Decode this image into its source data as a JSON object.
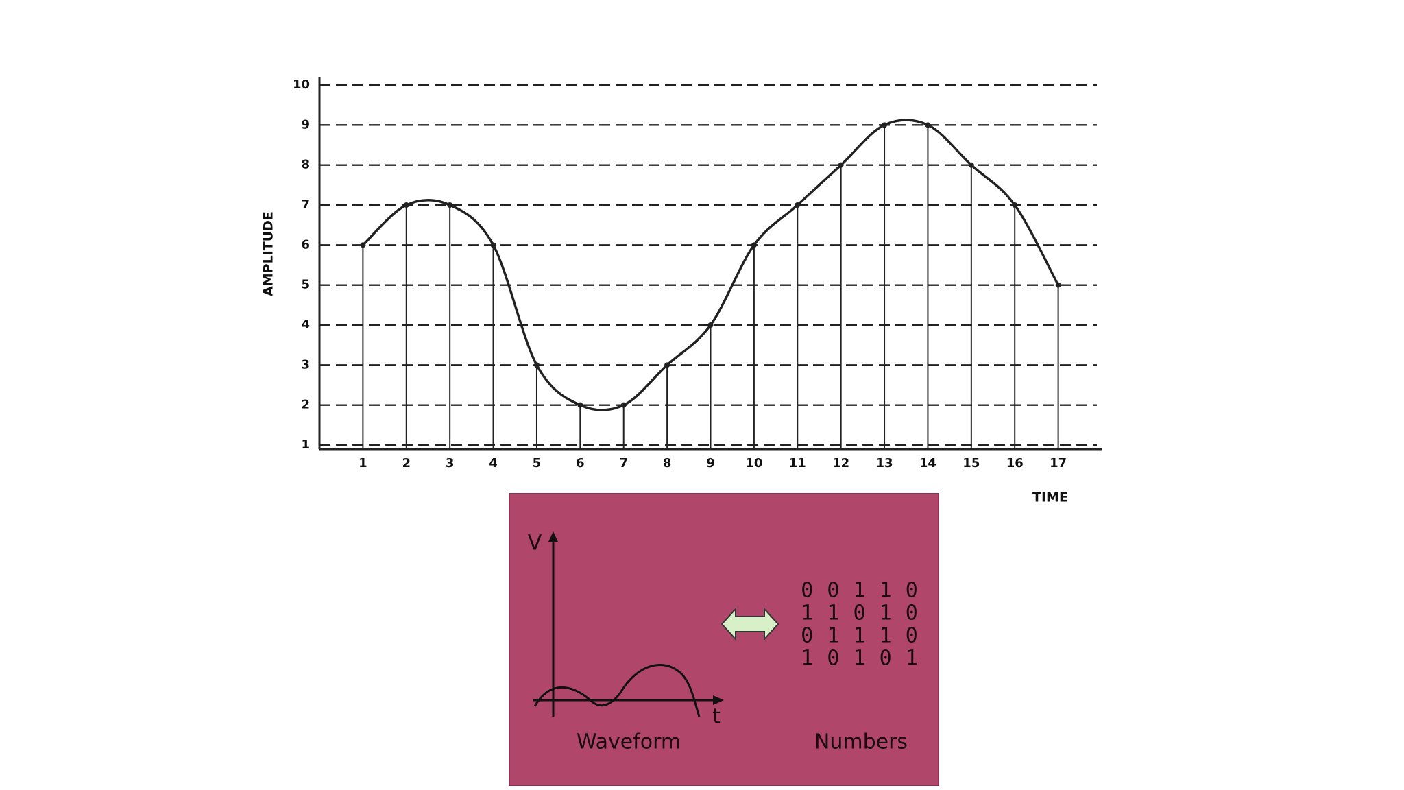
{
  "chart_data": {
    "type": "stem",
    "x": [
      1,
      2,
      3,
      4,
      5,
      6,
      7,
      8,
      9,
      10,
      11,
      12,
      13,
      14,
      15,
      16,
      17
    ],
    "values": [
      6,
      7,
      7,
      6,
      3,
      2,
      2,
      3,
      4,
      6,
      7,
      8,
      9,
      9,
      8,
      7,
      5
    ],
    "xlim": [
      0,
      18
    ],
    "ylim": [
      1,
      10
    ],
    "xticks": [
      1,
      2,
      3,
      4,
      5,
      6,
      7,
      8,
      9,
      10,
      11,
      12,
      13,
      14,
      15,
      16,
      17
    ],
    "yticks": [
      1,
      2,
      3,
      4,
      5,
      6,
      7,
      8,
      9,
      10
    ],
    "xlabel": "TIME",
    "ylabel": "AMPLITUDE",
    "grid": true,
    "color": "#222222"
  },
  "panel": {
    "v_label": "V",
    "t_label": "t",
    "waveform_label": "Waveform",
    "numbers_label": "Numbers",
    "rows": [
      "0 0 1 1 0",
      "1 1 0 1 0",
      "0 1 1 1 0",
      "1 0 1 0 1"
    ]
  }
}
